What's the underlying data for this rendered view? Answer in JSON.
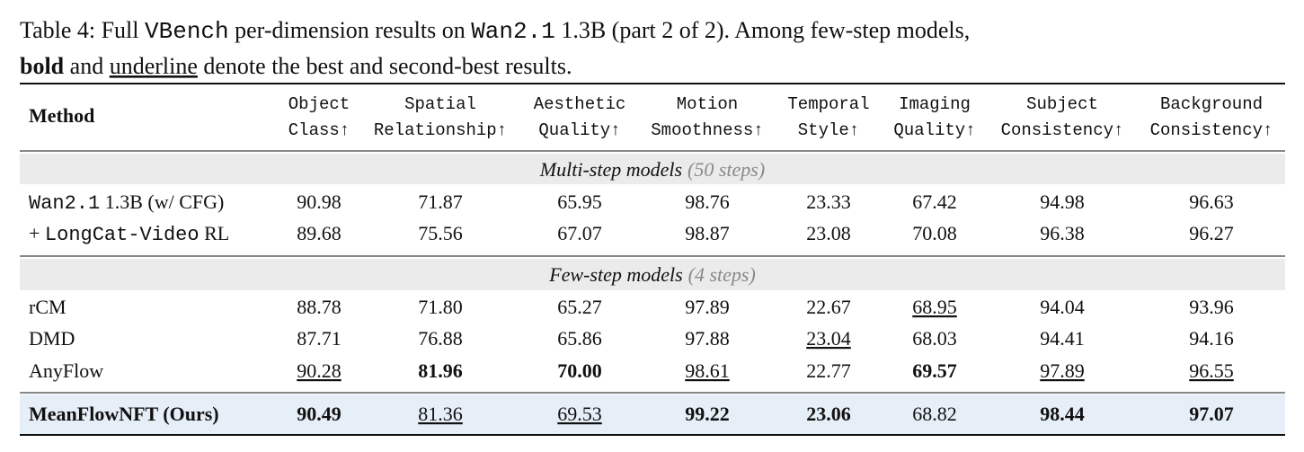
{
  "caption": {
    "lines": [
      [
        {
          "text": "Table 4: Full "
        },
        {
          "text": "VBench",
          "style": "code"
        },
        {
          "text": " per-dimension results on "
        },
        {
          "text": "Wan2.1",
          "style": "code"
        },
        {
          "text": " 1.3B (part 2 of 2). Among few-step models,"
        }
      ],
      [
        {
          "text": "bold",
          "style": "bold"
        },
        {
          "text": " and "
        },
        {
          "text": "underline",
          "style": "underline"
        },
        {
          "text": " denote the best and second-best results."
        }
      ]
    ]
  },
  "table": {
    "method_header": "Method",
    "headers": [
      [
        "Object",
        "Class↑"
      ],
      [
        "Spatial",
        "Relationship↑"
      ],
      [
        "Aesthetic",
        "Quality↑"
      ],
      [
        "Motion",
        "Smoothness↑"
      ],
      [
        "Temporal",
        "Style↑"
      ],
      [
        "Imaging",
        "Quality↑"
      ],
      [
        "Subject",
        "Consistency↑"
      ],
      [
        "Background",
        "Consistency↑"
      ]
    ],
    "sections": [
      {
        "label": "Multi-step models",
        "note": "(50 steps)",
        "rows": [
          {
            "method": [
              {
                "text": "Wan2.1",
                "style": "code"
              },
              {
                "text": " 1.3B (w/ CFG)"
              }
            ],
            "values": [
              "90.98",
              "71.87",
              "65.95",
              "98.76",
              "23.33",
              "67.42",
              "94.98",
              "96.63"
            ],
            "emphasis": [
              null,
              null,
              null,
              null,
              null,
              null,
              null,
              null
            ]
          },
          {
            "method": [
              {
                "text": "+ "
              },
              {
                "text": "LongCat-Video",
                "style": "code"
              },
              {
                "text": " RL"
              }
            ],
            "values": [
              "89.68",
              "75.56",
              "67.07",
              "98.87",
              "23.08",
              "70.08",
              "96.38",
              "96.27"
            ],
            "emphasis": [
              null,
              null,
              null,
              null,
              null,
              null,
              null,
              null
            ]
          }
        ]
      },
      {
        "label": "Few-step models",
        "note": "(4 steps)",
        "rows": [
          {
            "method": [
              {
                "text": "rCM"
              }
            ],
            "values": [
              "88.78",
              "71.80",
              "65.27",
              "97.89",
              "22.67",
              "68.95",
              "94.04",
              "93.96"
            ],
            "emphasis": [
              null,
              null,
              null,
              null,
              null,
              "underline",
              null,
              null
            ]
          },
          {
            "method": [
              {
                "text": "DMD"
              }
            ],
            "values": [
              "87.71",
              "76.88",
              "65.86",
              "97.88",
              "23.04",
              "68.03",
              "94.41",
              "94.16"
            ],
            "emphasis": [
              null,
              null,
              null,
              null,
              "underline",
              null,
              null,
              null
            ]
          },
          {
            "method": [
              {
                "text": "AnyFlow"
              }
            ],
            "values": [
              "90.28",
              "81.96",
              "70.00",
              "98.61",
              "22.77",
              "69.57",
              "97.89",
              "96.55"
            ],
            "emphasis": [
              "underline",
              "bold",
              "bold",
              "underline",
              null,
              "bold",
              "underline",
              "underline"
            ]
          }
        ]
      }
    ],
    "ours": {
      "method": [
        {
          "text": "MeanFlowNFT (Ours)",
          "style": "bold"
        }
      ],
      "values": [
        "90.49",
        "81.36",
        "69.53",
        "99.22",
        "23.06",
        "68.82",
        "98.44",
        "97.07"
      ],
      "emphasis": [
        "bold",
        "underline",
        "underline",
        "bold",
        "bold",
        null,
        "bold",
        "bold"
      ]
    }
  }
}
